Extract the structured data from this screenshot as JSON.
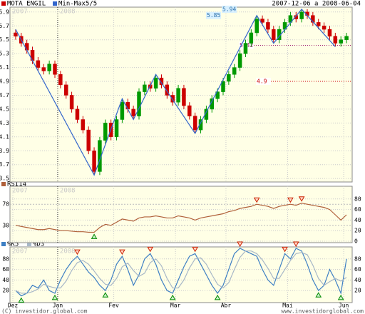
{
  "chart_data": [
    {
      "type": "candlestick",
      "title": "MOTA ENGIL",
      "subtitle": "2007-12-06 a 2008-06-04",
      "open": [
        5.6,
        5.55,
        5.45,
        5.35,
        5.2,
        5.1,
        5.05,
        5.15,
        5.0,
        4.85,
        4.7,
        4.5,
        4.35,
        4.2,
        3.9,
        3.6,
        4.05,
        4.3,
        4.1,
        4.35,
        4.6,
        4.5,
        4.4,
        4.75,
        4.85,
        4.8,
        4.95,
        4.85,
        4.7,
        4.6,
        4.8,
        4.55,
        4.4,
        4.2,
        4.35,
        4.5,
        4.65,
        4.75,
        4.9,
        5.0,
        5.1,
        5.3,
        5.45,
        5.6,
        5.8,
        5.75,
        5.65,
        5.5,
        5.65,
        5.75,
        5.85,
        5.8,
        5.9,
        5.85,
        5.75,
        5.7,
        5.65,
        5.55,
        5.45,
        5.5
      ],
      "high": [
        5.65,
        5.6,
        5.5,
        5.4,
        5.25,
        5.15,
        5.2,
        5.2,
        5.05,
        4.9,
        4.75,
        4.55,
        4.4,
        4.25,
        3.95,
        4.1,
        4.35,
        4.35,
        4.4,
        4.65,
        4.65,
        4.55,
        4.8,
        4.9,
        4.9,
        5.0,
        5.0,
        4.9,
        4.75,
        4.85,
        4.85,
        4.6,
        4.45,
        4.4,
        4.55,
        4.7,
        4.8,
        4.95,
        5.05,
        5.15,
        5.35,
        5.5,
        5.65,
        5.85,
        5.85,
        5.8,
        5.7,
        5.7,
        5.8,
        5.9,
        5.9,
        5.94,
        5.94,
        5.9,
        5.8,
        5.75,
        5.7,
        5.6,
        5.55,
        5.6
      ],
      "low": [
        5.5,
        5.4,
        5.3,
        5.15,
        5.05,
        5.0,
        5.0,
        4.95,
        4.8,
        4.65,
        4.45,
        4.3,
        4.15,
        3.85,
        3.55,
        3.55,
        4.0,
        4.05,
        4.05,
        4.3,
        4.45,
        4.35,
        4.35,
        4.7,
        4.75,
        4.75,
        4.8,
        4.65,
        4.55,
        4.55,
        4.5,
        4.35,
        4.15,
        4.15,
        4.3,
        4.45,
        4.6,
        4.7,
        4.85,
        4.95,
        5.05,
        5.25,
        5.4,
        5.55,
        5.7,
        5.6,
        5.45,
        5.45,
        5.6,
        5.7,
        5.75,
        5.75,
        5.8,
        5.7,
        5.65,
        5.6,
        5.5,
        5.4,
        5.4,
        5.45
      ],
      "close": [
        5.55,
        5.45,
        5.35,
        5.2,
        5.1,
        5.05,
        5.15,
        5.0,
        4.85,
        4.7,
        4.5,
        4.35,
        4.2,
        3.9,
        3.6,
        4.05,
        4.3,
        4.1,
        4.35,
        4.6,
        4.5,
        4.4,
        4.75,
        4.85,
        4.8,
        4.95,
        4.85,
        4.7,
        4.6,
        4.8,
        4.55,
        4.4,
        4.2,
        4.35,
        4.5,
        4.65,
        4.75,
        4.9,
        5.0,
        5.1,
        5.3,
        5.45,
        5.6,
        5.8,
        5.75,
        5.65,
        5.5,
        5.65,
        5.75,
        5.85,
        5.8,
        5.9,
        5.85,
        5.75,
        5.7,
        5.65,
        5.55,
        5.45,
        5.5,
        5.55
      ],
      "up_color": "#009900",
      "down_color": "#cc0000",
      "ylim": [
        3.45,
        5.97
      ],
      "yticks": [
        3.5,
        3.7,
        3.9,
        4.1,
        4.3,
        4.5,
        4.7,
        4.9,
        5.1,
        5.3,
        5.5,
        5.7,
        5.9
      ],
      "grid": true,
      "xticks": [
        {
          "value": 0,
          "label": "Dez"
        },
        {
          "value": 8,
          "label": "Jan"
        },
        {
          "value": 18,
          "label": "Fev"
        },
        {
          "value": 29,
          "label": "Mar"
        },
        {
          "value": 38,
          "label": "Abr"
        },
        {
          "value": 49,
          "label": "Mai"
        },
        {
          "value": 59,
          "label": "Jun"
        }
      ],
      "year_labels": [
        "2007",
        "2008"
      ],
      "zigzag": {
        "name": "Min-Max5/5",
        "color": "#3366cc",
        "x": [
          0,
          14,
          19,
          21,
          25,
          32,
          43,
          46,
          51,
          57
        ],
        "values": [
          5.65,
          3.55,
          4.65,
          4.35,
          5.0,
          4.15,
          5.85,
          5.45,
          5.94,
          5.4
        ]
      },
      "levels": [
        5.94,
        5.85,
        5.42,
        4.9
      ]
    },
    {
      "type": "line",
      "series": [
        {
          "name": "RSI14",
          "color": "#b0603a",
          "values": [
            30,
            28,
            26,
            24,
            22,
            22,
            24,
            22,
            20,
            20,
            19,
            18,
            18,
            17,
            17,
            26,
            32,
            30,
            36,
            42,
            40,
            38,
            44,
            46,
            46,
            48,
            46,
            44,
            44,
            48,
            46,
            44,
            40,
            44,
            46,
            48,
            50,
            52,
            56,
            58,
            62,
            64,
            66,
            70,
            68,
            66,
            62,
            66,
            68,
            70,
            68,
            72,
            70,
            68,
            66,
            64,
            60,
            50,
            40,
            50
          ]
        }
      ],
      "ylim": [
        0,
        100
      ],
      "yticks": [
        0,
        20,
        40,
        60,
        80
      ],
      "levels": [
        30,
        70
      ]
    },
    {
      "type": "line",
      "series": [
        {
          "name": "%K5",
          "color": "#3d7fc4",
          "values": [
            20,
            10,
            15,
            30,
            25,
            40,
            20,
            15,
            40,
            60,
            75,
            85,
            70,
            55,
            45,
            30,
            20,
            40,
            70,
            85,
            60,
            30,
            50,
            80,
            90,
            70,
            40,
            20,
            15,
            40,
            65,
            85,
            90,
            70,
            50,
            30,
            15,
            30,
            60,
            90,
            100,
            95,
            90,
            85,
            60,
            40,
            30,
            60,
            90,
            80,
            100,
            95,
            70,
            40,
            20,
            30,
            60,
            40,
            15,
            80
          ]
        },
        {
          "name": "%D3",
          "color": "#a8b8c8",
          "values": [
            20,
            15,
            15,
            18,
            23,
            32,
            28,
            25,
            25,
            38,
            58,
            73,
            77,
            70,
            57,
            43,
            32,
            30,
            43,
            65,
            72,
            58,
            47,
            53,
            73,
            80,
            67,
            43,
            25,
            25,
            40,
            63,
            80,
            82,
            70,
            50,
            32,
            25,
            35,
            60,
            83,
            95,
            95,
            90,
            78,
            62,
            43,
            43,
            60,
            77,
            90,
            92,
            88,
            68,
            43,
            30,
            37,
            43,
            38,
            45
          ]
        }
      ],
      "ylim": [
        0,
        100
      ],
      "yticks": [
        20,
        40,
        60,
        80
      ]
    }
  ],
  "footer": {
    "left": "(C) investidor.global.com",
    "right": "www.investidorglobal.com"
  }
}
